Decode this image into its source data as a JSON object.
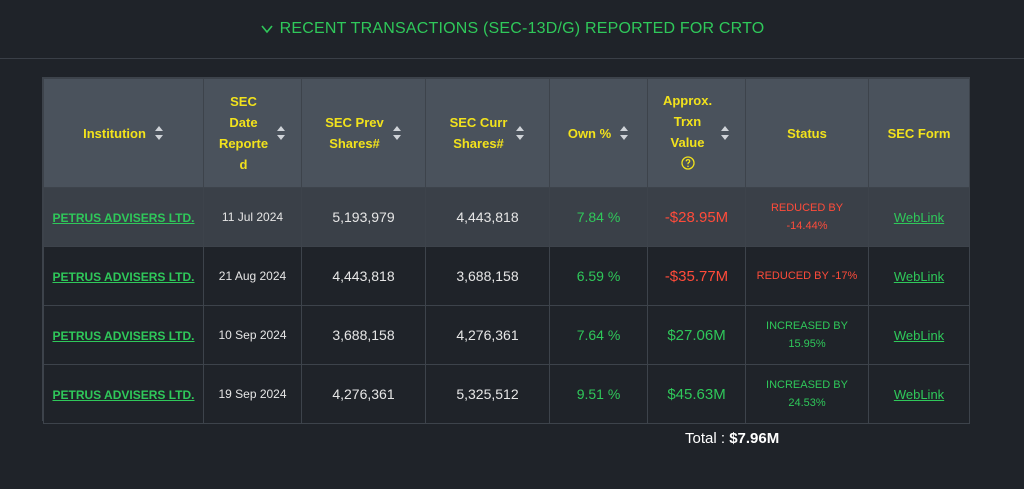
{
  "header": {
    "title": "RECENT TRANSACTIONS (SEC-13D/G) REPORTED FOR CRTO",
    "accent": "#2fc85a"
  },
  "table": {
    "columns": [
      {
        "label": "Institution",
        "sortable": true
      },
      {
        "label": "SEC\nDate\nReporte\nd",
        "sortable": true
      },
      {
        "label": "SEC Prev\nShares#",
        "sortable": true
      },
      {
        "label": "SEC Curr\nShares#",
        "sortable": true
      },
      {
        "label": "Own %",
        "sortable": true
      },
      {
        "label": "Approx.\nTrxn\nValue",
        "sortable": true,
        "help": true
      },
      {
        "label": "Status",
        "sortable": false
      },
      {
        "label": "SEC Form",
        "sortable": false
      }
    ],
    "rows": [
      {
        "institution": "PETRUS ADVISERS LTD.",
        "date": "11 Jul 2024",
        "prev": "5,193,979",
        "curr": "4,443,818",
        "own": "7.84 %",
        "value": "-$28.95M",
        "value_dir": "neg",
        "status": "REDUCED BY\n-14.44%",
        "status_dir": "neg",
        "form": "WebLink"
      },
      {
        "institution": "PETRUS ADVISERS LTD.",
        "date": "21 Aug 2024",
        "prev": "4,443,818",
        "curr": "3,688,158",
        "own": "6.59 %",
        "value": "-$35.77M",
        "value_dir": "neg",
        "status": "REDUCED BY -17%",
        "status_dir": "neg",
        "form": "WebLink"
      },
      {
        "institution": "PETRUS ADVISERS LTD.",
        "date": "10 Sep 2024",
        "prev": "3,688,158",
        "curr": "4,276,361",
        "own": "7.64 %",
        "value": "$27.06M",
        "value_dir": "pos",
        "status": "INCREASED BY\n15.95%",
        "status_dir": "pos",
        "form": "WebLink"
      },
      {
        "institution": "PETRUS ADVISERS LTD.",
        "date": "19 Sep 2024",
        "prev": "4,276,361",
        "curr": "5,325,512",
        "own": "9.51 %",
        "value": "$45.63M",
        "value_dir": "pos",
        "status": "INCREASED BY\n24.53%",
        "status_dir": "pos",
        "form": "WebLink"
      }
    ]
  },
  "footer": {
    "total_label": "Total : ",
    "total_value": "$7.96M"
  },
  "colors": {
    "header_bg": "#4a525c",
    "header_text": "#f2e21c",
    "positive": "#2fc85a",
    "negative": "#ff4b3a"
  }
}
